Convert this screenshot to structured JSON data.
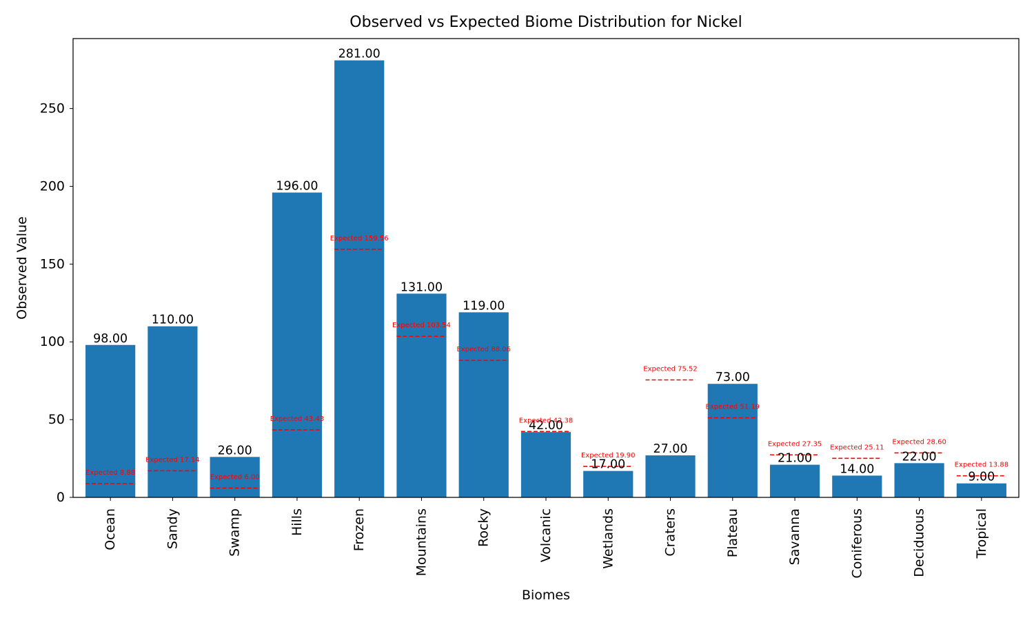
{
  "chart_data": {
    "type": "bar",
    "title": "Observed vs Expected Biome Distribution for Nickel",
    "xlabel": "Biomes",
    "ylabel": "Observed Value",
    "ylim": [
      0,
      295
    ],
    "yticks": [
      0,
      50,
      100,
      150,
      200,
      250
    ],
    "categories": [
      "Ocean",
      "Sandy",
      "Swamp",
      "Hills",
      "Frozen",
      "Mountains",
      "Rocky",
      "Volcanic",
      "Wetlands",
      "Craters",
      "Plateau",
      "Savanna",
      "Coniferous",
      "Deciduous",
      "Tropical"
    ],
    "series": [
      {
        "values": [
          98.0,
          110.0,
          26.0,
          196.0,
          281.0,
          131.0,
          119.0,
          42.0,
          17.0,
          27.0,
          73.0,
          21.0,
          14.0,
          22.0,
          9.0
        ],
        "labels": [
          "98.00",
          "110.00",
          "26.00",
          "196.00",
          "281.00",
          "131.00",
          "119.00",
          "42.00",
          "17.00",
          "27.00",
          "73.00",
          "21.00",
          "14.00",
          "22.00",
          "9.00"
        ],
        "color": "#1f77b4"
      },
      {
        "values": [
          8.88,
          17.14,
          6.0,
          43.43,
          159.56,
          103.54,
          88.06,
          42.38,
          19.9,
          75.52,
          51.19,
          27.35,
          25.11,
          28.6,
          13.88
        ],
        "labels": [
          "Expected 8.88",
          "Expected 17.14",
          "Expected 6.00",
          "Expected 43.43",
          "Expected 159.56",
          "Expected 103.54",
          "Expected 88.06",
          "Expected 42.38",
          "Expected 19.90",
          "Expected 75.52",
          "Expected 51.19",
          "Expected 27.35",
          "Expected 25.11",
          "Expected 28.60",
          "Expected 13.88"
        ],
        "color": "#ff0000",
        "style": "dashed"
      }
    ],
    "grid": false,
    "legend": "none"
  }
}
